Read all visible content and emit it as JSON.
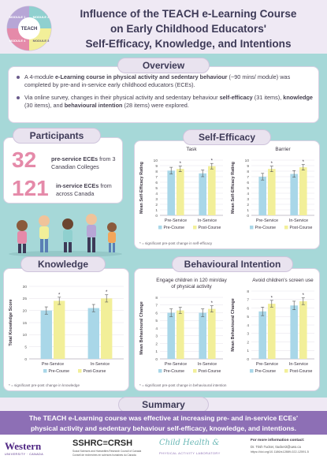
{
  "title": {
    "line1": "Influence of the TEACH e-Learning Course",
    "line2": "on Early Childhood Educators'",
    "line3": "Self-Efficacy, Knowledge, and Intentions"
  },
  "logo": {
    "labels": [
      "MODULE 1",
      "MODULE 2",
      "MODULE 3",
      "MODULE 4"
    ],
    "center": "TEACH"
  },
  "overview": {
    "heading": "Overview",
    "bullet1": {
      "pre": "A 4-module ",
      "bold": "e-Learning course in physical activity and sedentary behaviour",
      "post": " (~90 mins/ module) was completed by pre-and in-service early childhood educators (ECEs)."
    },
    "bullet2": {
      "pre": "Via online survey, changes in their physical activity and sedentary behaviour ",
      "b1": "self-efficacy",
      "m1": " (31 items), ",
      "b2": "knowledge",
      "m2": " (30 items), and ",
      "b3": "behavioural intention",
      "post": " (28 items) were explored."
    }
  },
  "participants": {
    "heading": "Participants",
    "pre_number": "32",
    "pre_bold": "pre-service ECEs",
    "pre_rest": " from 3 Canadian Colleges",
    "in_number": "121",
    "in_bold": "in-service ECEs",
    "in_rest": " from across Canada"
  },
  "self_efficacy": {
    "heading": "Self-Efficacy",
    "note": "* = significant pre-post change in self-efficacy"
  },
  "knowledge": {
    "heading": "Knowledge",
    "note": "* = significant pre-post change in knowledge"
  },
  "behavioural_intention": {
    "heading": "Behavioural Intention",
    "note": "* = significant pre-post change in behavioural intention"
  },
  "summary": {
    "heading": "Summary",
    "text_line1": "The TEACH e-Learning course was effective at increasing pre- and in-service ECEs'",
    "text_line2": "physical activity and sedentary behaviour self-efficacy, knowledge, and intentions."
  },
  "footer": {
    "western": "Western",
    "western_sub": "UNIVERSITY · CANADA",
    "sshrc": "SSHRC≡CRSH",
    "sshrc_sub1": "Social Sciences and Humanities Research Council of Canada",
    "sshrc_sub2": "Conseil de recherches en sciences humaines du Canada",
    "lab_script": "Child Health &",
    "lab_sub": "PHYSICAL ACTIVITY LABORATORY",
    "contact_title": "For more information contact:",
    "contact_name": "Dr. Trish Tucker, ttucker2@uwo.ca",
    "contact_doi": "https://doi.org/10.1186/s12889-022-12591-5"
  },
  "colors": {
    "pre": "#a9d7e8",
    "post": "#f2ef99",
    "accent": "#8d6fb5",
    "band": "#a6d8d8",
    "stat": "#e58aa9"
  },
  "chart_data": [
    {
      "id": "task",
      "type": "bar",
      "title": "Task",
      "ylabel": "Mean Self-Efficacy Rating",
      "categories": [
        "Pre-Service",
        "In-Service"
      ],
      "series": [
        {
          "name": "Pre-Course",
          "values": [
            8.1,
            7.6
          ],
          "errors": [
            0.6,
            0.6
          ]
        },
        {
          "name": "Post-Course",
          "values": [
            8.4,
            8.9
          ],
          "errors": [
            0.5,
            0.5
          ]
        }
      ],
      "significant": [
        true,
        true
      ],
      "ylim": [
        0,
        10
      ],
      "ticks": [
        0,
        1,
        2,
        3,
        4,
        5,
        6,
        7,
        8,
        9,
        10
      ]
    },
    {
      "id": "barrier",
      "type": "bar",
      "title": "Barrier",
      "ylabel": "Mean Self-Efficacy Rating",
      "categories": [
        "Pre-Service",
        "In-Service"
      ],
      "series": [
        {
          "name": "Pre-Course",
          "values": [
            7.0,
            7.5
          ],
          "errors": [
            0.6,
            0.6
          ]
        },
        {
          "name": "Post-Course",
          "values": [
            8.4,
            8.7
          ],
          "errors": [
            0.5,
            0.5
          ]
        }
      ],
      "significant": [
        true,
        true
      ],
      "ylim": [
        0,
        10
      ],
      "ticks": [
        0,
        1,
        2,
        3,
        4,
        5,
        6,
        7,
        8,
        9,
        10
      ]
    },
    {
      "id": "knowledge",
      "type": "bar",
      "title": "",
      "ylabel": "Total Knowledge Score",
      "categories": [
        "Pre-Service",
        "In-Service"
      ],
      "series": [
        {
          "name": "Pre-Course",
          "values": [
            20,
            21
          ],
          "errors": [
            1.5,
            1.5
          ]
        },
        {
          "name": "Post-Course",
          "values": [
            24,
            25
          ],
          "errors": [
            1.5,
            1.5
          ]
        }
      ],
      "significant": [
        true,
        true
      ],
      "ylim": [
        0,
        30
      ],
      "ticks": [
        0,
        5,
        10,
        15,
        20,
        25,
        30
      ]
    },
    {
      "id": "engage",
      "type": "bar",
      "title": "Engage children in 120 min/day of physical activity",
      "ylabel": "Mean Behavioural Change",
      "categories": [
        "Pre-Service",
        "In-Service"
      ],
      "series": [
        {
          "name": "Pre-Course",
          "values": [
            6.0,
            6.0
          ],
          "errors": [
            0.5,
            0.5
          ]
        },
        {
          "name": "Post-Course",
          "values": [
            6.3,
            6.5
          ],
          "errors": [
            0.4,
            0.4
          ]
        }
      ],
      "significant": [
        false,
        true
      ],
      "ylim": [
        0,
        8
      ],
      "ticks": [
        0,
        1,
        2,
        3,
        4,
        5,
        6,
        7,
        8
      ]
    },
    {
      "id": "screen",
      "type": "bar",
      "title": "Avoid children's screen use",
      "ylabel": "Mean Behavioural Change",
      "categories": [
        "Pre-Service",
        "In-Service"
      ],
      "series": [
        {
          "name": "Pre-Course",
          "values": [
            5.6,
            6.3
          ],
          "errors": [
            0.5,
            0.5
          ]
        },
        {
          "name": "Post-Course",
          "values": [
            6.5,
            6.8
          ],
          "errors": [
            0.4,
            0.4
          ]
        }
      ],
      "significant": [
        true,
        true
      ],
      "ylim": [
        0,
        8
      ],
      "ticks": [
        0,
        1,
        2,
        3,
        4,
        5,
        6,
        7,
        8
      ]
    }
  ]
}
